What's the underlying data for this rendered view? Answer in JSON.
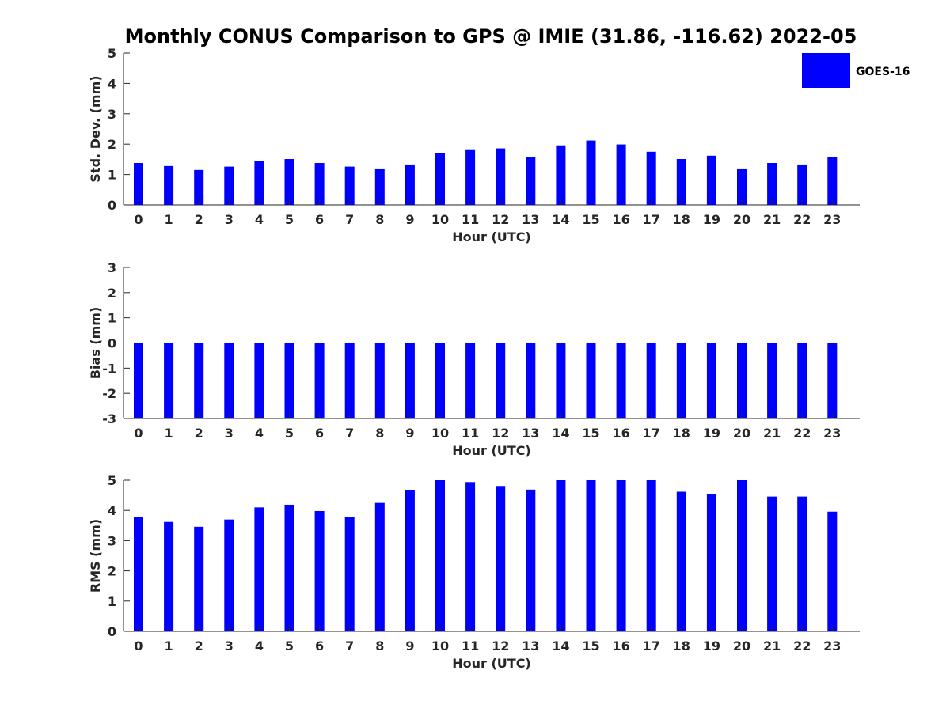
{
  "title": "Monthly CONUS Comparison to GPS @ IMIE (31.86, -116.62) 2022-05",
  "legend": {
    "label": "GOES-16",
    "color": "#0000ff",
    "placement": "top-right"
  },
  "chart_data": [
    {
      "type": "bar",
      "ylabel": "Std. Dev. (mm)",
      "xlabel": "Hour (UTC)",
      "ylim": [
        0,
        5
      ],
      "yticks": [
        0,
        1,
        2,
        3,
        4,
        5
      ],
      "categories": [
        "0",
        "1",
        "2",
        "3",
        "4",
        "5",
        "6",
        "7",
        "8",
        "9",
        "10",
        "11",
        "12",
        "13",
        "14",
        "15",
        "16",
        "17",
        "18",
        "19",
        "20",
        "21",
        "22",
        "23"
      ],
      "series": [
        {
          "name": "GOES-16",
          "color": "#0000ff",
          "values": [
            1.38,
            1.28,
            1.15,
            1.26,
            1.44,
            1.51,
            1.38,
            1.26,
            1.2,
            1.33,
            1.7,
            1.83,
            1.86,
            1.57,
            1.96,
            2.12,
            1.99,
            1.75,
            1.51,
            1.62,
            1.2,
            1.38,
            1.33,
            1.57
          ]
        }
      ],
      "grid": false
    },
    {
      "type": "bar",
      "ylabel": "Bias (mm)",
      "xlabel": "Hour (UTC)",
      "ylim": [
        -3,
        3
      ],
      "yticks": [
        -3,
        -2,
        -1,
        0,
        1,
        2,
        3
      ],
      "categories": [
        "0",
        "1",
        "2",
        "3",
        "4",
        "5",
        "6",
        "7",
        "8",
        "9",
        "10",
        "11",
        "12",
        "13",
        "14",
        "15",
        "16",
        "17",
        "18",
        "19",
        "20",
        "21",
        "22",
        "23"
      ],
      "series": [
        {
          "name": "GOES-16",
          "color": "#0000ff",
          "values": [
            -3,
            -3,
            -3,
            -3,
            -3,
            -3,
            -3,
            -3,
            -3,
            -3,
            -3,
            -3,
            -3,
            -3,
            -3,
            -3,
            -3,
            -3,
            -3,
            -3,
            -3,
            -3,
            -3,
            -3
          ]
        }
      ],
      "grid": false
    },
    {
      "type": "bar",
      "ylabel": "RMS (mm)",
      "xlabel": "Hour (UTC)",
      "ylim": [
        0,
        5
      ],
      "yticks": [
        0,
        1,
        2,
        3,
        4,
        5
      ],
      "categories": [
        "0",
        "1",
        "2",
        "3",
        "4",
        "5",
        "6",
        "7",
        "8",
        "9",
        "10",
        "11",
        "12",
        "13",
        "14",
        "15",
        "16",
        "17",
        "18",
        "19",
        "20",
        "21",
        "22",
        "23"
      ],
      "series": [
        {
          "name": "GOES-16",
          "color": "#0000ff",
          "values": [
            3.78,
            3.62,
            3.46,
            3.7,
            4.1,
            4.19,
            3.98,
            3.78,
            4.25,
            4.67,
            5.0,
            4.94,
            4.81,
            4.69,
            5.0,
            5.0,
            5.0,
            5.0,
            4.62,
            4.54,
            5.0,
            4.46,
            4.46,
            3.96
          ]
        }
      ],
      "grid": false
    }
  ]
}
